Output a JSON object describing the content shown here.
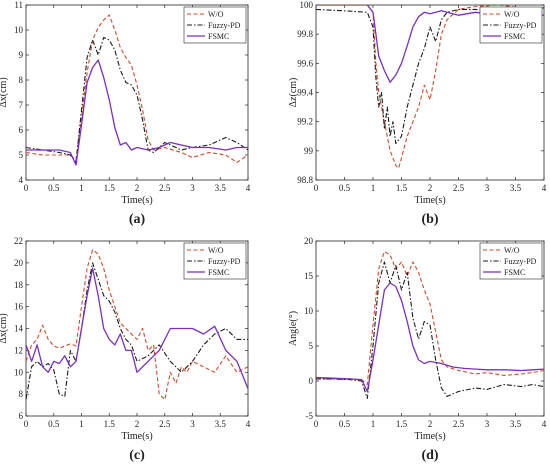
{
  "colors": {
    "wo": "#d04a2a",
    "fuzzy": "#1a1a1a",
    "fsmc": "#7a2fc1",
    "axis": "#262626",
    "plot_bg": "#ffffff"
  },
  "chart_data": [
    {
      "type": "line",
      "panel_label": "(a)",
      "xlabel": "Time(s)",
      "ylabel": "Δx(cm)",
      "xlim": [
        0,
        4
      ],
      "ylim": [
        4,
        11
      ],
      "xticks": [
        0,
        0.5,
        1,
        1.5,
        2,
        2.5,
        3,
        3.5,
        4
      ],
      "xtick_labels": [
        "0",
        "0.5",
        "1",
        "1.5",
        "2",
        "2.5",
        "3",
        "3.5",
        "4"
      ],
      "yticks": [
        4,
        5,
        6,
        7,
        8,
        9,
        10,
        11
      ],
      "ytick_labels": [
        "4",
        "5",
        "6",
        "7",
        "8",
        "9",
        "10",
        "11"
      ],
      "grid": false,
      "legend": "top-right",
      "series": [
        {
          "name": "W/O",
          "style": "dashed",
          "x": [
            0,
            0.3,
            0.6,
            0.8,
            0.9,
            1.0,
            1.1,
            1.2,
            1.3,
            1.4,
            1.5,
            1.6,
            1.7,
            1.8,
            1.9,
            2.0,
            2.1,
            2.2,
            2.3,
            2.5,
            2.8,
            3.0,
            3.3,
            3.6,
            3.8,
            4.0
          ],
          "y": [
            5.1,
            5.0,
            5.0,
            5.0,
            4.8,
            6.5,
            8.3,
            9.6,
            10.1,
            10.4,
            10.6,
            10.0,
            9.3,
            8.9,
            8.6,
            7.8,
            6.8,
            5.6,
            5.2,
            5.3,
            5.1,
            4.9,
            5.1,
            5.0,
            4.7,
            5.0
          ]
        },
        {
          "name": "Fuzzy-PD",
          "style": "dashdot",
          "x": [
            0,
            0.3,
            0.6,
            0.8,
            0.9,
            1.0,
            1.1,
            1.2,
            1.3,
            1.4,
            1.5,
            1.6,
            1.7,
            1.8,
            1.9,
            2.0,
            2.1,
            2.2,
            2.3,
            2.5,
            2.8,
            3.0,
            3.3,
            3.6,
            3.8,
            4.0
          ],
          "y": [
            5.3,
            5.2,
            5.1,
            5.0,
            4.7,
            6.8,
            8.9,
            9.6,
            9.0,
            9.7,
            9.6,
            9.2,
            8.4,
            7.9,
            7.8,
            7.4,
            6.4,
            5.2,
            5.1,
            5.5,
            5.2,
            5.3,
            5.4,
            5.7,
            5.5,
            5.2
          ]
        },
        {
          "name": "FSMC",
          "style": "solid",
          "x": [
            0,
            0.3,
            0.6,
            0.8,
            0.9,
            1.0,
            1.1,
            1.2,
            1.3,
            1.4,
            1.5,
            1.6,
            1.7,
            1.8,
            1.9,
            2.0,
            2.2,
            2.4,
            2.6,
            2.8,
            3.0,
            3.3,
            3.6,
            3.8,
            4.0
          ],
          "y": [
            5.2,
            5.2,
            5.2,
            5.1,
            4.6,
            6.2,
            7.9,
            8.5,
            8.8,
            8.1,
            7.2,
            6.1,
            5.4,
            5.5,
            5.2,
            5.3,
            5.2,
            5.3,
            5.5,
            5.4,
            5.3,
            5.3,
            5.2,
            5.3,
            5.3
          ]
        }
      ]
    },
    {
      "type": "line",
      "panel_label": "(b)",
      "xlabel": "Time(s)",
      "ylabel": "Δz(cm)",
      "xlim": [
        0,
        4
      ],
      "ylim": [
        98.8,
        100
      ],
      "xticks": [
        0,
        0.5,
        1,
        1.5,
        2,
        2.5,
        3,
        3.5,
        4
      ],
      "xtick_labels": [
        "0",
        "0.5",
        "1",
        "1.5",
        "2",
        "2.5",
        "3",
        "3.5",
        "4"
      ],
      "yticks": [
        98.8,
        99,
        99.2,
        99.4,
        99.6,
        99.8,
        100
      ],
      "ytick_labels": [
        "98.8",
        "99",
        "99.2",
        "99.4",
        "99.6",
        "99.8",
        "100"
      ],
      "grid": false,
      "legend": "top-right",
      "series": [
        {
          "name": "W/O",
          "style": "dashed",
          "x": [
            0,
            0.5,
            0.9,
            1.0,
            1.05,
            1.1,
            1.2,
            1.3,
            1.4,
            1.45,
            1.5,
            1.6,
            1.7,
            1.8,
            1.9,
            2.0,
            2.1,
            2.2,
            2.3,
            2.5,
            2.8,
            3.2,
            3.6,
            4.0
          ],
          "y": [
            100,
            100,
            100,
            99.95,
            99.6,
            99.4,
            99.2,
            99.0,
            98.9,
            98.88,
            98.95,
            99.1,
            99.2,
            99.3,
            99.45,
            99.35,
            99.55,
            99.8,
            99.9,
            99.97,
            99.99,
            100,
            99.98,
            99.95
          ]
        },
        {
          "name": "Fuzzy-PD",
          "style": "dashdot",
          "x": [
            0,
            0.5,
            0.9,
            1.0,
            1.05,
            1.1,
            1.15,
            1.2,
            1.25,
            1.3,
            1.35,
            1.4,
            1.5,
            1.6,
            1.7,
            1.8,
            1.9,
            2.0,
            2.1,
            2.2,
            2.3,
            2.5,
            2.8,
            3.2,
            3.6,
            4.0
          ],
          "y": [
            99.97,
            99.96,
            99.95,
            99.85,
            99.5,
            99.3,
            99.4,
            99.15,
            99.3,
            99.1,
            99.2,
            99.05,
            99.1,
            99.3,
            99.45,
            99.6,
            99.7,
            99.85,
            99.75,
            99.9,
            99.95,
            99.97,
            99.97,
            99.96,
            99.97,
            99.98
          ]
        },
        {
          "name": "FSMC",
          "style": "solid",
          "x": [
            0,
            0.5,
            0.9,
            1.0,
            1.05,
            1.1,
            1.2,
            1.3,
            1.4,
            1.5,
            1.6,
            1.7,
            1.8,
            1.9,
            2.0,
            2.2,
            2.5,
            2.8,
            3.2,
            3.6,
            4.0
          ],
          "y": [
            100,
            100,
            100,
            99.95,
            99.8,
            99.65,
            99.55,
            99.47,
            99.52,
            99.6,
            99.72,
            99.85,
            99.92,
            99.95,
            99.94,
            99.96,
            99.93,
            99.95,
            99.93,
            99.94,
            99.93
          ]
        }
      ]
    },
    {
      "type": "line",
      "panel_label": "(c)",
      "xlabel": "Time(s)",
      "ylabel": "Δx(cm)",
      "xlim": [
        0,
        4
      ],
      "ylim": [
        6,
        22
      ],
      "xticks": [
        0,
        0.5,
        1,
        1.5,
        2,
        2.5,
        3,
        3.5,
        4
      ],
      "xtick_labels": [
        "0",
        "0.5",
        "1",
        "1.5",
        "2",
        "2.5",
        "3",
        "3.5",
        "4"
      ],
      "yticks": [
        6,
        8,
        10,
        12,
        14,
        16,
        18,
        20,
        22
      ],
      "ytick_labels": [
        "6",
        "8",
        "10",
        "12",
        "14",
        "16",
        "18",
        "20",
        "22"
      ],
      "grid": false,
      "legend": "top-right",
      "series": [
        {
          "name": "W/O",
          "style": "dashed",
          "x": [
            0,
            0.1,
            0.2,
            0.3,
            0.4,
            0.5,
            0.6,
            0.7,
            0.8,
            0.9,
            1.0,
            1.1,
            1.2,
            1.3,
            1.4,
            1.5,
            1.6,
            1.7,
            1.8,
            1.9,
            2.0,
            2.1,
            2.2,
            2.3,
            2.4,
            2.5,
            2.6,
            2.7,
            2.8,
            2.9,
            3.0,
            3.2,
            3.4,
            3.6,
            3.8,
            4.0
          ],
          "y": [
            11,
            12.5,
            13,
            14.3,
            13,
            12.4,
            12.2,
            12.4,
            12.6,
            12.4,
            16,
            19.5,
            21.2,
            20.8,
            19.5,
            17.5,
            16,
            14.5,
            14,
            13.5,
            13,
            14,
            12,
            12.5,
            8,
            7.5,
            10,
            9,
            10.5,
            10,
            11,
            10.5,
            10,
            11.5,
            10,
            10.5
          ]
        },
        {
          "name": "Fuzzy-PD",
          "style": "dashdot",
          "x": [
            0,
            0.1,
            0.2,
            0.3,
            0.4,
            0.5,
            0.6,
            0.7,
            0.8,
            0.9,
            1.0,
            1.1,
            1.2,
            1.3,
            1.4,
            1.5,
            1.6,
            1.7,
            1.8,
            1.9,
            2.0,
            2.2,
            2.4,
            2.6,
            2.8,
            3.0,
            3.2,
            3.4,
            3.6,
            3.8,
            4.0
          ],
          "y": [
            7.5,
            10.5,
            11,
            10.5,
            10.8,
            10.2,
            8,
            7.8,
            12,
            11,
            14,
            17.5,
            20,
            18.5,
            17,
            16.5,
            15.5,
            14,
            13,
            12.5,
            11,
            11.5,
            12.5,
            11,
            10,
            11,
            12.5,
            13.5,
            14,
            13,
            13
          ]
        },
        {
          "name": "FSMC",
          "style": "solid",
          "x": [
            0,
            0.1,
            0.2,
            0.3,
            0.4,
            0.5,
            0.6,
            0.7,
            0.8,
            0.9,
            1.0,
            1.1,
            1.2,
            1.3,
            1.4,
            1.5,
            1.6,
            1.7,
            1.8,
            1.9,
            2.0,
            2.2,
            2.4,
            2.6,
            2.8,
            3.0,
            3.2,
            3.4,
            3.6,
            3.8,
            4.0
          ],
          "y": [
            12.5,
            11,
            12.5,
            10.5,
            10,
            11,
            10.8,
            11.5,
            10.5,
            11,
            14,
            17,
            19.5,
            17,
            14,
            13,
            12.5,
            13.5,
            12,
            12,
            10,
            11,
            12,
            14,
            14,
            14,
            13.5,
            14.2,
            12,
            11,
            8.5
          ]
        }
      ]
    },
    {
      "type": "line",
      "panel_label": "(d)",
      "xlabel": "Time(s)",
      "ylabel": "Angle(°)",
      "xlim": [
        0,
        4
      ],
      "ylim": [
        -5,
        20
      ],
      "xticks": [
        0,
        0.5,
        1,
        1.5,
        2,
        2.5,
        3,
        3.5,
        4
      ],
      "xtick_labels": [
        "0",
        "0.5",
        "1",
        "1.5",
        "2",
        "2.5",
        "3",
        "3.5",
        "4"
      ],
      "yticks": [
        -5,
        0,
        5,
        10,
        15,
        20
      ],
      "ytick_labels": [
        "-5",
        "0",
        "5",
        "10",
        "15",
        "20"
      ],
      "grid": false,
      "legend": "top-right",
      "series": [
        {
          "name": "W/O",
          "style": "dashed",
          "x": [
            0,
            0.3,
            0.6,
            0.8,
            0.9,
            1.0,
            1.1,
            1.2,
            1.3,
            1.4,
            1.5,
            1.6,
            1.7,
            1.8,
            1.9,
            2.0,
            2.1,
            2.2,
            2.3,
            2.5,
            2.8,
            3.0,
            3.3,
            3.6,
            3.8,
            4.0
          ],
          "y": [
            0.3,
            0.3,
            0.2,
            0.2,
            -0.5,
            8,
            16,
            18.5,
            18,
            16,
            17,
            15,
            17,
            15.5,
            13,
            11,
            7,
            3,
            2,
            1.5,
            1,
            1.2,
            0.8,
            1,
            1.2,
            1.5
          ]
        },
        {
          "name": "Fuzzy-PD",
          "style": "dashdot",
          "x": [
            0,
            0.3,
            0.6,
            0.8,
            0.9,
            1.0,
            1.1,
            1.2,
            1.3,
            1.4,
            1.5,
            1.6,
            1.7,
            1.8,
            1.9,
            2.0,
            2.1,
            2.2,
            2.3,
            2.5,
            2.8,
            3.0,
            3.3,
            3.6,
            3.8,
            4.0
          ],
          "y": [
            0.3,
            0.3,
            0.2,
            0,
            -2.5,
            5,
            14,
            17,
            14,
            16.5,
            13,
            15.5,
            9,
            6,
            8.5,
            8,
            3,
            -1,
            -2.2,
            -1.5,
            -1,
            -1.2,
            -0.5,
            -0.8,
            -0.5,
            -0.8
          ]
        },
        {
          "name": "FSMC",
          "style": "solid",
          "x": [
            0,
            0.3,
            0.6,
            0.8,
            0.9,
            1.0,
            1.1,
            1.2,
            1.3,
            1.4,
            1.5,
            1.6,
            1.7,
            1.8,
            1.9,
            2.0,
            2.2,
            2.4,
            2.6,
            2.8,
            3.0,
            3.3,
            3.6,
            3.8,
            4.0
          ],
          "y": [
            0.5,
            0.4,
            0.3,
            0.2,
            -1.5,
            3,
            8,
            13,
            14,
            13.5,
            11.5,
            8.5,
            5,
            3,
            2.5,
            2.8,
            2.5,
            2,
            1.8,
            1.7,
            1.6,
            1.6,
            1.5,
            1.6,
            1.7
          ]
        }
      ]
    }
  ]
}
